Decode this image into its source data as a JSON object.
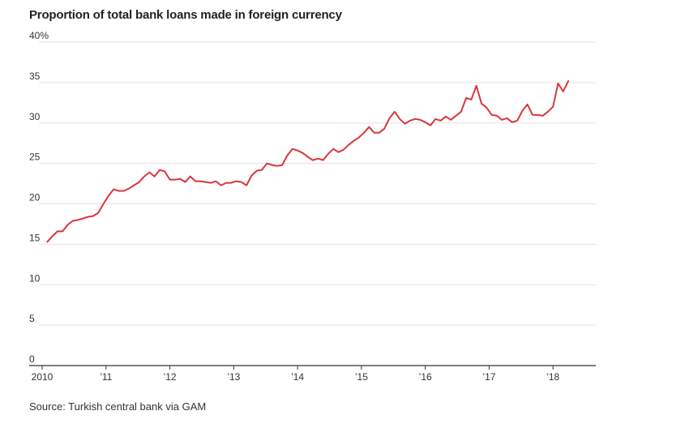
{
  "title": "Proportion of total bank loans made in foreign currency",
  "source": "Source: Turkish central bank via GAM",
  "colors": {
    "line": "#d9363e",
    "grid": "#e3e3e3",
    "axis": "#333333"
  },
  "chart_data": {
    "type": "line",
    "title": "Proportion of total bank loans made in foreign currency",
    "xlabel": "",
    "ylabel": "",
    "ylim": [
      0,
      40
    ],
    "xlim": [
      2010,
      2018.67
    ],
    "grid": true,
    "yticks": [
      0,
      5,
      10,
      15,
      20,
      25,
      30,
      35,
      40
    ],
    "ytick_labels": [
      "0",
      "5",
      "10",
      "15",
      "20",
      "25",
      "30",
      "35",
      "40%"
    ],
    "xticks": [
      2010,
      2011,
      2012,
      2013,
      2014,
      2015,
      2016,
      2017,
      2018
    ],
    "xtick_labels": [
      "2010",
      "’11",
      "’12",
      "’13",
      "’14",
      "’15",
      "’16",
      "’17",
      "’18"
    ],
    "series": [
      {
        "color": "#d9363e",
        "points": [
          [
            2010.08,
            15.3
          ],
          [
            2010.16,
            16.0
          ],
          [
            2010.24,
            16.6
          ],
          [
            2010.32,
            16.6
          ],
          [
            2010.4,
            17.4
          ],
          [
            2010.48,
            17.9
          ],
          [
            2010.56,
            18.0
          ],
          [
            2010.64,
            18.2
          ],
          [
            2010.72,
            18.4
          ],
          [
            2010.8,
            18.5
          ],
          [
            2010.88,
            18.9
          ],
          [
            2010.96,
            20.0
          ],
          [
            2011.04,
            21.0
          ],
          [
            2011.12,
            21.8
          ],
          [
            2011.2,
            21.6
          ],
          [
            2011.28,
            21.6
          ],
          [
            2011.36,
            21.9
          ],
          [
            2011.44,
            22.3
          ],
          [
            2011.52,
            22.7
          ],
          [
            2011.6,
            23.4
          ],
          [
            2011.68,
            23.9
          ],
          [
            2011.76,
            23.4
          ],
          [
            2011.84,
            24.2
          ],
          [
            2011.92,
            24.0
          ],
          [
            2012.0,
            23.0
          ],
          [
            2012.08,
            23.0
          ],
          [
            2012.16,
            23.1
          ],
          [
            2012.24,
            22.7
          ],
          [
            2012.32,
            23.4
          ],
          [
            2012.4,
            22.8
          ],
          [
            2012.48,
            22.8
          ],
          [
            2012.56,
            22.7
          ],
          [
            2012.64,
            22.6
          ],
          [
            2012.72,
            22.8
          ],
          [
            2012.8,
            22.3
          ],
          [
            2012.88,
            22.6
          ],
          [
            2012.96,
            22.6
          ],
          [
            2013.04,
            22.8
          ],
          [
            2013.12,
            22.7
          ],
          [
            2013.2,
            22.3
          ],
          [
            2013.28,
            23.5
          ],
          [
            2013.36,
            24.1
          ],
          [
            2013.44,
            24.2
          ],
          [
            2013.52,
            25.0
          ],
          [
            2013.6,
            24.8
          ],
          [
            2013.68,
            24.7
          ],
          [
            2013.76,
            24.8
          ],
          [
            2013.84,
            26.0
          ],
          [
            2013.92,
            26.8
          ],
          [
            2014.0,
            26.6
          ],
          [
            2014.08,
            26.3
          ],
          [
            2014.16,
            25.8
          ],
          [
            2014.24,
            25.4
          ],
          [
            2014.32,
            25.6
          ],
          [
            2014.4,
            25.4
          ],
          [
            2014.48,
            26.2
          ],
          [
            2014.56,
            26.8
          ],
          [
            2014.64,
            26.4
          ],
          [
            2014.72,
            26.7
          ],
          [
            2014.8,
            27.3
          ],
          [
            2014.88,
            27.8
          ],
          [
            2014.96,
            28.2
          ],
          [
            2015.04,
            28.8
          ],
          [
            2015.12,
            29.5
          ],
          [
            2015.2,
            28.8
          ],
          [
            2015.28,
            28.8
          ],
          [
            2015.36,
            29.3
          ],
          [
            2015.44,
            30.6
          ],
          [
            2015.52,
            31.4
          ],
          [
            2015.6,
            30.5
          ],
          [
            2015.68,
            29.9
          ],
          [
            2015.76,
            30.3
          ],
          [
            2015.84,
            30.5
          ],
          [
            2015.92,
            30.4
          ],
          [
            2016.0,
            30.1
          ],
          [
            2016.08,
            29.7
          ],
          [
            2016.16,
            30.5
          ],
          [
            2016.24,
            30.3
          ],
          [
            2016.32,
            30.8
          ],
          [
            2016.4,
            30.4
          ],
          [
            2016.48,
            30.9
          ],
          [
            2016.56,
            31.4
          ],
          [
            2016.64,
            33.1
          ],
          [
            2016.72,
            32.9
          ],
          [
            2016.8,
            34.6
          ],
          [
            2016.88,
            32.4
          ],
          [
            2016.96,
            31.9
          ],
          [
            2017.04,
            31.0
          ],
          [
            2017.12,
            30.9
          ],
          [
            2017.2,
            30.4
          ],
          [
            2017.28,
            30.6
          ],
          [
            2017.36,
            30.1
          ],
          [
            2017.44,
            30.3
          ],
          [
            2017.52,
            31.5
          ],
          [
            2017.6,
            32.3
          ],
          [
            2017.68,
            31.0
          ],
          [
            2017.76,
            31.0
          ],
          [
            2017.84,
            30.9
          ],
          [
            2017.92,
            31.4
          ],
          [
            2018.0,
            32.0
          ],
          [
            2018.08,
            34.9
          ],
          [
            2018.16,
            33.9
          ],
          [
            2018.24,
            35.2
          ]
        ]
      }
    ]
  }
}
